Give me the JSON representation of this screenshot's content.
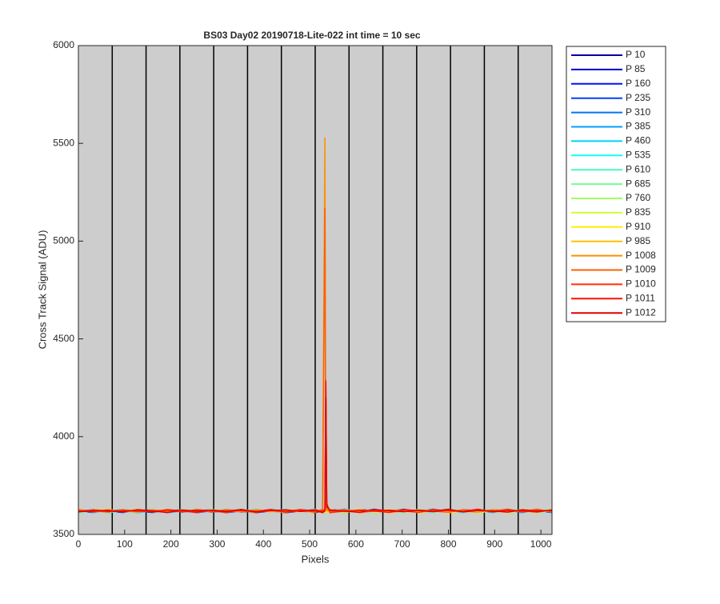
{
  "chart_data": {
    "type": "line",
    "title": "BS03 Day02 20190718-Lite-022 int time = 10 sec",
    "xlabel": "Pixels",
    "ylabel": "Cross Track Signal (ADU)",
    "xlim": [
      0,
      1024
    ],
    "ylim": [
      3500,
      6000
    ],
    "xticks": [
      0,
      100,
      200,
      300,
      400,
      500,
      600,
      700,
      800,
      900,
      1000
    ],
    "yticks": [
      3500,
      4000,
      4500,
      5000,
      5500,
      6000
    ],
    "vlines": [
      73.14,
      146.29,
      219.43,
      292.57,
      365.71,
      438.86,
      512,
      585.14,
      658.29,
      731.43,
      804.57,
      877.71,
      950.86
    ],
    "background": "#cdcdcd",
    "x": [
      0,
      32,
      64,
      96,
      128,
      160,
      192,
      224,
      256,
      288,
      320,
      352,
      384,
      416,
      448,
      480,
      512,
      528,
      533,
      535,
      537,
      544,
      576,
      608,
      640,
      672,
      704,
      736,
      768,
      800,
      832,
      864,
      896,
      928,
      960,
      992,
      1024
    ],
    "series": [
      {
        "name": "P 10",
        "color": "#0000a0",
        "values": [
          3618,
          3624,
          3615,
          3627,
          3620,
          3612,
          3625,
          3619,
          3622,
          3616,
          3628,
          3614,
          3621,
          3626,
          3617,
          3623,
          3611,
          3620,
          3622,
          3618,
          3625,
          3619,
          3613,
          3627,
          3621,
          3616,
          3624,
          3618,
          3629,
          3615,
          3622,
          3620,
          3614,
          3626,
          3619,
          3623,
          3617
        ]
      },
      {
        "name": "P 85",
        "color": "#0000d0",
        "values": [
          3615,
          3627,
          3620,
          3612,
          3625,
          3619,
          3622,
          3616,
          3628,
          3614,
          3621,
          3626,
          3617,
          3623,
          3611,
          3620,
          3622,
          3618,
          3625,
          3619,
          3613,
          3627,
          3621,
          3616,
          3624,
          3618,
          3629,
          3615,
          3622,
          3620,
          3614,
          3626,
          3619,
          3623,
          3617,
          3618,
          3624
        ]
      },
      {
        "name": "P 160",
        "color": "#0010ff",
        "values": [
          3620,
          3612,
          3625,
          3619,
          3622,
          3616,
          3628,
          3614,
          3621,
          3626,
          3617,
          3623,
          3611,
          3620,
          3622,
          3618,
          3625,
          3619,
          3613,
          3627,
          3621,
          3616,
          3624,
          3618,
          3629,
          3615,
          3622,
          3620,
          3614,
          3626,
          3619,
          3623,
          3617,
          3618,
          3624,
          3615,
          3627
        ]
      },
      {
        "name": "P 235",
        "color": "#0040ff",
        "values": [
          3625,
          3619,
          3622,
          3616,
          3628,
          3614,
          3621,
          3626,
          3617,
          3623,
          3611,
          3620,
          3622,
          3618,
          3625,
          3619,
          3613,
          3627,
          3621,
          3616,
          3624,
          3618,
          3629,
          3615,
          3622,
          3620,
          3614,
          3626,
          3619,
          3623,
          3617,
          3618,
          3624,
          3615,
          3627,
          3620,
          3612
        ]
      },
      {
        "name": "P 310",
        "color": "#0070ff",
        "values": [
          3622,
          3616,
          3628,
          3614,
          3621,
          3626,
          3617,
          3623,
          3611,
          3620,
          3622,
          3618,
          3625,
          3619,
          3613,
          3627,
          3621,
          3616,
          3624,
          3618,
          3629,
          3615,
          3622,
          3620,
          3614,
          3626,
          3619,
          3623,
          3617,
          3618,
          3624,
          3615,
          3627,
          3620,
          3612,
          3625,
          3619
        ]
      },
      {
        "name": "P 385",
        "color": "#00a0ff",
        "values": [
          3628,
          3614,
          3621,
          3626,
          3617,
          3623,
          3611,
          3620,
          3622,
          3618,
          3625,
          3619,
          3613,
          3627,
          3621,
          3616,
          3624,
          3618,
          3629,
          3615,
          3622,
          3620,
          3614,
          3626,
          3619,
          3623,
          3617,
          3618,
          3624,
          3615,
          3627,
          3620,
          3612,
          3625,
          3619,
          3622,
          3616
        ]
      },
      {
        "name": "P 460",
        "color": "#00d0ff",
        "values": [
          3621,
          3626,
          3617,
          3623,
          3611,
          3620,
          3622,
          3618,
          3625,
          3619,
          3613,
          3627,
          3621,
          3616,
          3624,
          3618,
          3629,
          3615,
          3622,
          3620,
          3614,
          3626,
          3619,
          3623,
          3617,
          3618,
          3624,
          3615,
          3627,
          3620,
          3612,
          3625,
          3619,
          3622,
          3616,
          3628,
          3614
        ]
      },
      {
        "name": "P 535",
        "color": "#10ffef",
        "values": [
          3617,
          3623,
          3611,
          3620,
          3622,
          3618,
          3625,
          3619,
          3613,
          3627,
          3621,
          3616,
          3624,
          3618,
          3629,
          3615,
          3622,
          3620,
          3614,
          3626,
          3619,
          3623,
          3617,
          3618,
          3624,
          3615,
          3627,
          3620,
          3612,
          3625,
          3619,
          3622,
          3616,
          3628,
          3614,
          3621,
          3626
        ]
      },
      {
        "name": "P 610",
        "color": "#40ffbf",
        "values": [
          3611,
          3620,
          3622,
          3618,
          3625,
          3619,
          3613,
          3627,
          3621,
          3616,
          3624,
          3618,
          3629,
          3615,
          3622,
          3620,
          3614,
          3626,
          3619,
          3623,
          3617,
          3618,
          3624,
          3615,
          3627,
          3620,
          3612,
          3625,
          3619,
          3622,
          3616,
          3628,
          3614,
          3621,
          3626,
          3617,
          3623
        ]
      },
      {
        "name": "P 685",
        "color": "#70ff8f",
        "values": [
          3622,
          3618,
          3625,
          3619,
          3613,
          3627,
          3621,
          3616,
          3624,
          3618,
          3629,
          3615,
          3622,
          3620,
          3614,
          3626,
          3619,
          3623,
          3617,
          3618,
          3624,
          3615,
          3627,
          3620,
          3612,
          3625,
          3619,
          3622,
          3616,
          3628,
          3614,
          3621,
          3626,
          3617,
          3623,
          3611,
          3620
        ]
      },
      {
        "name": "P 760",
        "color": "#a0ff60",
        "values": [
          3625,
          3619,
          3613,
          3627,
          3621,
          3616,
          3624,
          3618,
          3629,
          3615,
          3622,
          3620,
          3614,
          3626,
          3619,
          3623,
          3617,
          3618,
          3624,
          3615,
          3627,
          3620,
          3612,
          3625,
          3619,
          3622,
          3616,
          3628,
          3614,
          3621,
          3626,
          3617,
          3623,
          3611,
          3620,
          3622,
          3618
        ]
      },
      {
        "name": "P 835",
        "color": "#d0ff30",
        "values": [
          3613,
          3627,
          3621,
          3616,
          3624,
          3618,
          3629,
          3615,
          3622,
          3620,
          3614,
          3626,
          3619,
          3623,
          3617,
          3618,
          3624,
          3615,
          3627,
          3620,
          3612,
          3625,
          3619,
          3622,
          3616,
          3628,
          3614,
          3621,
          3626,
          3617,
          3623,
          3611,
          3620,
          3622,
          3618,
          3625,
          3619
        ]
      },
      {
        "name": "P 910",
        "color": "#ffef00",
        "values": [
          3621,
          3616,
          3624,
          3618,
          3629,
          3615,
          3622,
          3620,
          3614,
          3626,
          3619,
          3623,
          3617,
          3618,
          3624,
          3615,
          3627,
          3620,
          3612,
          3625,
          3619,
          3622,
          3616,
          3628,
          3614,
          3621,
          3626,
          3617,
          3623,
          3611,
          3620,
          3622,
          3618,
          3625,
          3619,
          3613,
          3627
        ]
      },
      {
        "name": "P 985",
        "color": "#ffc000",
        "values": [
          3624,
          3618,
          3629,
          3615,
          3622,
          3620,
          3614,
          3626,
          3619,
          3623,
          3617,
          3618,
          3624,
          3615,
          3627,
          3620,
          3612,
          3625,
          3619,
          3622,
          3616,
          3628,
          3614,
          3621,
          3626,
          3617,
          3623,
          3611,
          3620,
          3622,
          3618,
          3625,
          3619,
          3613,
          3627,
          3621,
          3616
        ]
      },
      {
        "name": "P 1008",
        "color": "#ff9000",
        "values": [
          3629,
          3615,
          3622,
          3620,
          3614,
          3626,
          3619,
          3623,
          3617,
          3618,
          3624,
          3615,
          3627,
          3620,
          3612,
          3625,
          3619,
          3622,
          5530,
          3628,
          3650,
          3621,
          3626,
          3617,
          3623,
          3611,
          3620,
          3622,
          3618,
          3625,
          3619,
          3613,
          3627,
          3621,
          3616,
          3624,
          3618
        ]
      },
      {
        "name": "P 1009",
        "color": "#ff6000",
        "values": [
          3622,
          3620,
          3614,
          3626,
          3619,
          3623,
          3617,
          3618,
          3624,
          3615,
          3627,
          3620,
          3612,
          3625,
          3619,
          3622,
          3616,
          3628,
          5170,
          3700,
          3626,
          3617,
          3623,
          3611,
          3620,
          3622,
          3618,
          3625,
          3619,
          3613,
          3627,
          3621,
          3616,
          3624,
          3618,
          3629,
          3615
        ]
      },
      {
        "name": "P 1010",
        "color": "#ff3000",
        "values": [
          3614,
          3626,
          3619,
          3623,
          3617,
          3618,
          3624,
          3615,
          3627,
          3620,
          3612,
          3625,
          3619,
          3622,
          3616,
          3628,
          3614,
          3621,
          3626,
          4290,
          3660,
          3611,
          3620,
          3622,
          3618,
          3625,
          3619,
          3613,
          3627,
          3621,
          3616,
          3624,
          3618,
          3629,
          3615,
          3622,
          3620
        ]
      },
      {
        "name": "P 1011",
        "color": "#ff1000",
        "values": [
          3619,
          3623,
          3617,
          3618,
          3624,
          3615,
          3627,
          3620,
          3612,
          3625,
          3619,
          3622,
          3616,
          3628,
          3614,
          3621,
          3626,
          3617,
          3623,
          4280,
          3650,
          3622,
          3618,
          3625,
          3619,
          3613,
          3627,
          3621,
          3616,
          3624,
          3618,
          3629,
          3615,
          3622,
          3620,
          3614,
          3626
        ]
      },
      {
        "name": "P 1012",
        "color": "#e00000",
        "values": [
          3617,
          3618,
          3624,
          3615,
          3627,
          3620,
          3612,
          3625,
          3619,
          3622,
          3616,
          3628,
          3614,
          3621,
          3626,
          3617,
          3623,
          3611,
          3620,
          4200,
          3640,
          3625,
          3619,
          3613,
          3627,
          3621,
          3616,
          3624,
          3618,
          3629,
          3615,
          3622,
          3620,
          3614,
          3626,
          3619,
          3623
        ]
      }
    ]
  }
}
